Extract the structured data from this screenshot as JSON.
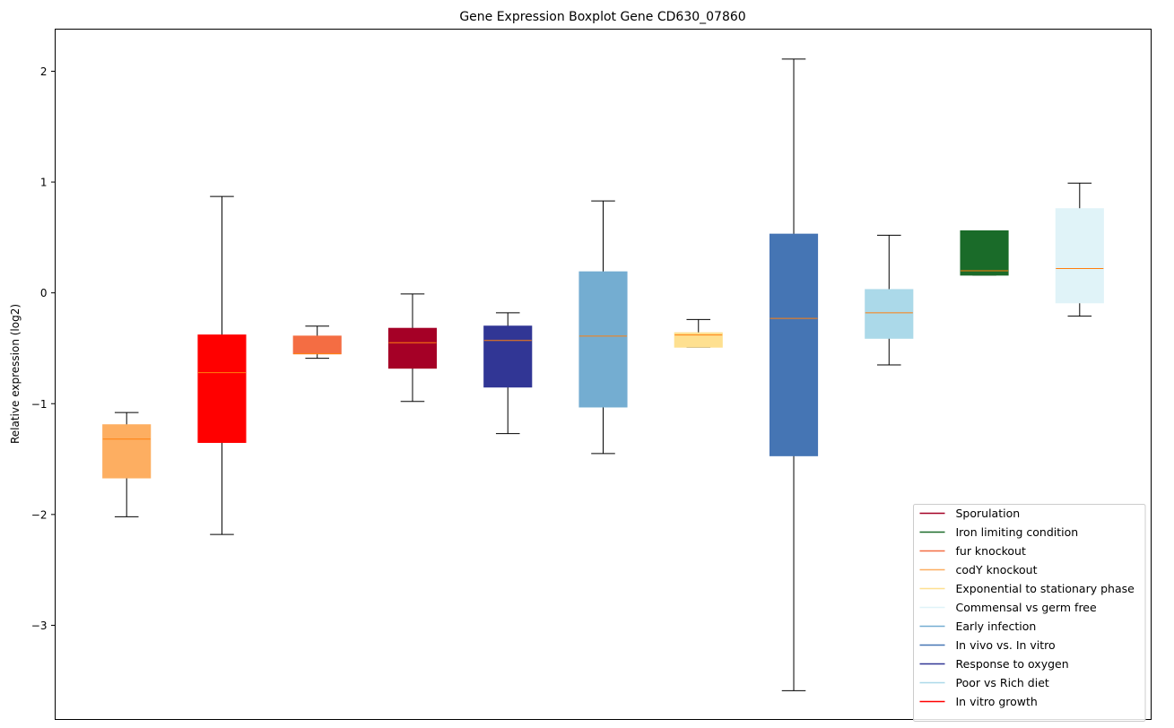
{
  "chart_data": {
    "type": "boxplot",
    "title": "Gene Expression Boxplot Gene CD630_07860",
    "xlabel": "",
    "ylabel": "Relative expression (log2)",
    "ylim": [
      -3.85,
      2.38
    ],
    "yticks": [
      -3,
      -2,
      -1,
      0,
      1,
      2
    ],
    "ytick_labels": [
      "−3",
      "−2",
      "−1",
      "0",
      "1",
      "2"
    ],
    "median_color": "#ff7f0e",
    "series": [
      {
        "name": "codY knockout",
        "color": "#fdae61",
        "whislo": -2.02,
        "q1": -1.67,
        "med": -1.32,
        "q3": -1.19,
        "whishi": -1.08
      },
      {
        "name": "In vitro growth",
        "color": "#ff0000",
        "whislo": -2.18,
        "q1": -1.35,
        "med": -0.72,
        "q3": -0.38,
        "whishi": 0.87
      },
      {
        "name": "fur knockout",
        "color": "#f46d43",
        "whislo": -0.59,
        "q1": -0.55,
        "med": -0.55,
        "q3": -0.39,
        "whishi": -0.3
      },
      {
        "name": "Sporulation",
        "color": "#a50026",
        "whislo": -0.98,
        "q1": -0.68,
        "med": -0.45,
        "q3": -0.32,
        "whishi": -0.01
      },
      {
        "name": "Response to oxygen",
        "color": "#313695",
        "whislo": -1.27,
        "q1": -0.85,
        "med": -0.43,
        "q3": -0.3,
        "whishi": -0.18
      },
      {
        "name": "Early infection",
        "color": "#74add1",
        "whislo": -1.45,
        "q1": -1.03,
        "med": -0.39,
        "q3": 0.19,
        "whishi": 0.83
      },
      {
        "name": "Exponential to stationary phase",
        "color": "#fee090",
        "whislo": -0.49,
        "q1": -0.49,
        "med": -0.38,
        "q3": -0.36,
        "whishi": -0.24
      },
      {
        "name": "In vivo vs. In vitro",
        "color": "#4575b4",
        "whislo": -3.59,
        "q1": -1.47,
        "med": -0.23,
        "q3": 0.53,
        "whishi": 2.11
      },
      {
        "name": "Poor vs Rich diet",
        "color": "#abd9e9",
        "whislo": -0.65,
        "q1": -0.41,
        "med": -0.18,
        "q3": 0.03,
        "whishi": 0.52
      },
      {
        "name": "Iron limiting condition",
        "color": "#1a6b29",
        "whislo": 0.16,
        "q1": 0.16,
        "med": 0.2,
        "q3": 0.56,
        "whishi": 0.56
      },
      {
        "name": "Commensal vs germ free",
        "color": "#e0f3f8",
        "whislo": -0.21,
        "q1": -0.09,
        "med": 0.22,
        "q3": 0.76,
        "whishi": 0.99
      }
    ],
    "legend": {
      "placement": "lower-right",
      "entries": [
        {
          "label": "Sporulation",
          "color": "#a50026"
        },
        {
          "label": "Iron limiting condition",
          "color": "#1a6b29"
        },
        {
          "label": "fur knockout",
          "color": "#f46d43"
        },
        {
          "label": "codY knockout",
          "color": "#fdae61"
        },
        {
          "label": "Exponential to stationary phase",
          "color": "#fee090"
        },
        {
          "label": "Commensal vs germ free",
          "color": "#e0f3f8"
        },
        {
          "label": "Early infection",
          "color": "#74add1"
        },
        {
          "label": "In vivo vs. In vitro",
          "color": "#4575b4"
        },
        {
          "label": "Response to oxygen",
          "color": "#313695"
        },
        {
          "label": "Poor vs Rich diet",
          "color": "#abd9e9"
        },
        {
          "label": "In vitro growth",
          "color": "#ff0000"
        }
      ]
    }
  }
}
